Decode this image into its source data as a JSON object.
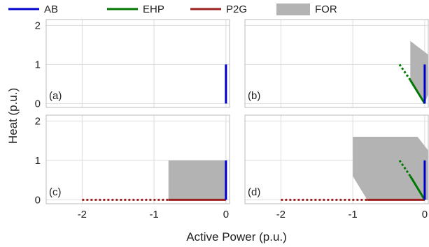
{
  "chart_data": {
    "type": "line",
    "xlabel": "Active Power (p.u.)",
    "ylabel": "Heat (p.u.)",
    "xlim": [
      -2.5,
      0.05
    ],
    "ylim": [
      -0.1,
      2.15
    ],
    "grid": true,
    "legend_position": "top",
    "xticks": [
      {
        "value": -2,
        "label": "-2"
      },
      {
        "value": -1,
        "label": "-1"
      },
      {
        "value": 0,
        "label": "0"
      }
    ],
    "yticks": [
      {
        "value": 0,
        "label": "0"
      },
      {
        "value": 1,
        "label": "1"
      },
      {
        "value": 2,
        "label": "2"
      }
    ],
    "legend": [
      {
        "name": "AB",
        "color": "#0000cc",
        "kind": "line"
      },
      {
        "name": "EHP",
        "color": "#007700",
        "kind": "line"
      },
      {
        "name": "P2G",
        "color": "#9b2020",
        "kind": "line"
      },
      {
        "name": "FOR",
        "color": "#b3b3b3",
        "kind": "patch"
      }
    ],
    "panels": [
      {
        "label": "(a)",
        "region": null,
        "segments": [
          {
            "series": "AB",
            "x": [
              0,
              0
            ],
            "y": [
              0,
              1
            ],
            "dash": false
          }
        ]
      },
      {
        "label": "(b)",
        "region": [
          [
            -0.2,
            1.6
          ],
          [
            0.05,
            1.25
          ],
          [
            0.05,
            0.25
          ],
          [
            0,
            0
          ],
          [
            -0.2,
            0.55
          ]
        ],
        "segments": [
          {
            "series": "EHP",
            "x": [
              -0.35,
              -0.2
            ],
            "y": [
              1.0,
              0.6
            ],
            "dash": true
          },
          {
            "series": "EHP",
            "x": [
              -0.2,
              0
            ],
            "y": [
              0.6,
              0
            ],
            "dash": false
          },
          {
            "series": "AB",
            "x": [
              0,
              0
            ],
            "y": [
              0,
              1
            ],
            "dash": false
          }
        ]
      },
      {
        "label": "(c)",
        "region": [
          [
            -0.8,
            0
          ],
          [
            -0.8,
            1
          ],
          [
            0,
            1
          ],
          [
            0,
            0
          ]
        ],
        "segments": [
          {
            "series": "P2G",
            "x": [
              -2,
              -0.8
            ],
            "y": [
              0,
              0
            ],
            "dash": true
          },
          {
            "series": "P2G",
            "x": [
              -0.8,
              0
            ],
            "y": [
              0,
              0
            ],
            "dash": false
          },
          {
            "series": "AB",
            "x": [
              0,
              0
            ],
            "y": [
              0,
              1
            ],
            "dash": false
          }
        ]
      },
      {
        "label": "(d)",
        "region": [
          [
            -1.0,
            1.6
          ],
          [
            -0.1,
            1.6
          ],
          [
            0.05,
            1.25
          ],
          [
            0.05,
            0
          ],
          [
            -0.8,
            0
          ],
          [
            -1.0,
            0.6
          ]
        ],
        "segments": [
          {
            "series": "P2G",
            "x": [
              -2,
              -0.8
            ],
            "y": [
              0,
              0
            ],
            "dash": true
          },
          {
            "series": "P2G",
            "x": [
              -0.8,
              0
            ],
            "y": [
              0,
              0
            ],
            "dash": false
          },
          {
            "series": "EHP",
            "x": [
              -0.35,
              -0.2
            ],
            "y": [
              1.0,
              0.6
            ],
            "dash": true
          },
          {
            "series": "EHP",
            "x": [
              -0.2,
              0
            ],
            "y": [
              0.6,
              0
            ],
            "dash": false
          },
          {
            "series": "AB",
            "x": [
              0,
              0
            ],
            "y": [
              0,
              1
            ],
            "dash": false
          }
        ]
      }
    ]
  }
}
